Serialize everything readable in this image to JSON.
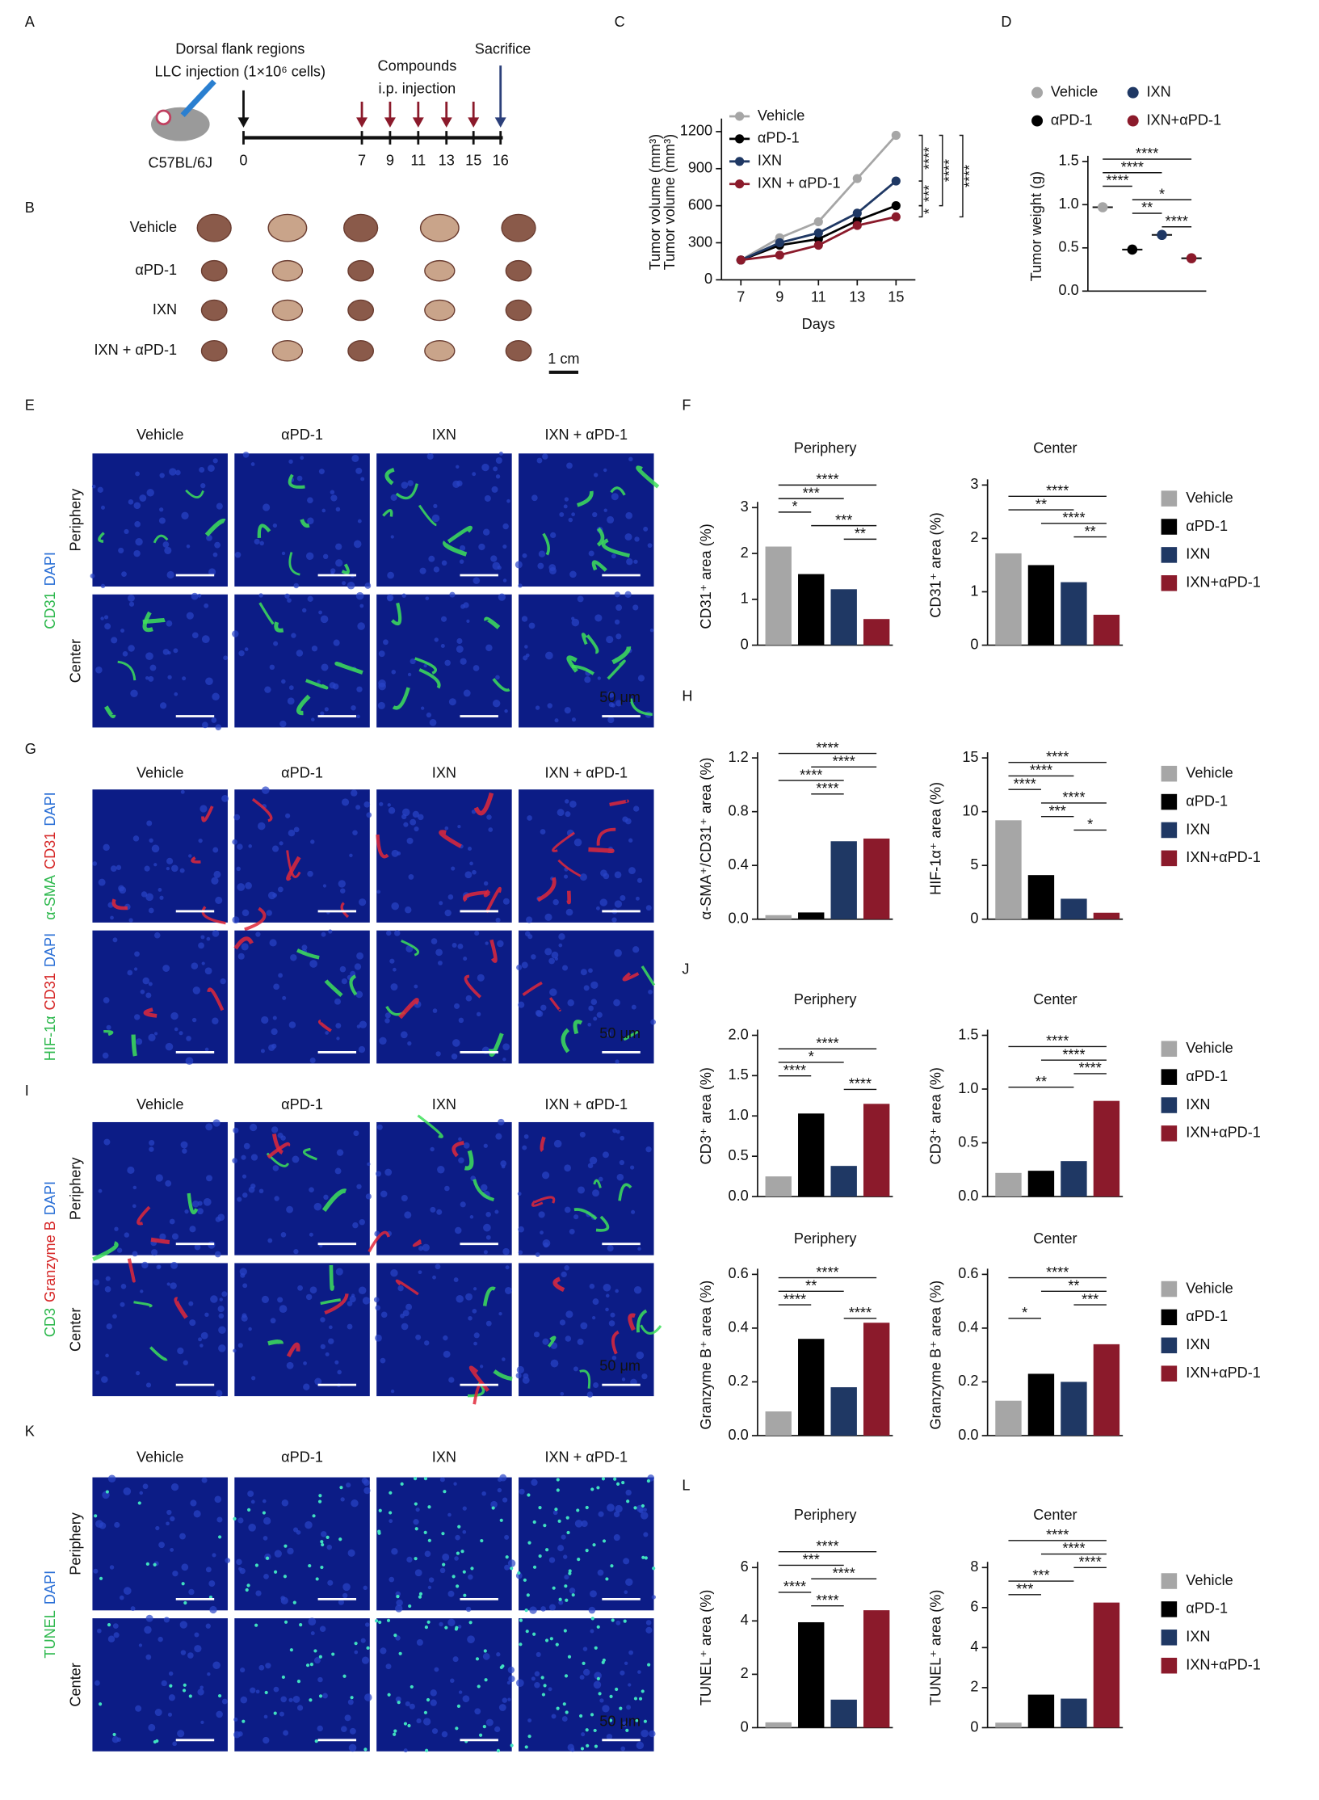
{
  "panel_letters": [
    "A",
    "B",
    "C",
    "D",
    "E",
    "F",
    "G",
    "H",
    "I",
    "J",
    "K",
    "L"
  ],
  "schematic": {
    "site": "Dorsal flank regions",
    "injection": "LLC injection (1×10⁶ cells)",
    "compounds": "Compounds",
    "route": "i.p. injection",
    "sacrifice": "Sacrifice",
    "strain": "C57BL/6J",
    "days": [
      0,
      7,
      9,
      11,
      13,
      15,
      16
    ]
  },
  "photos": {
    "rows": [
      "Vehicle",
      "αPD-1",
      "IXN",
      "IXN + αPD-1"
    ],
    "scale": "1 cm"
  },
  "micrographs": [
    {
      "columns": [
        "Vehicle",
        "αPD-1",
        "IXN",
        "IXN + αPD-1"
      ],
      "rows": [
        "Periphery",
        "Center"
      ],
      "stain_rows": [
        [
          {
            "text": "CD31",
            "color": "#2db84d"
          },
          {
            "text": "DAPI",
            "color": "#2a6fd6"
          }
        ]
      ],
      "scale": "50 μm"
    },
    {
      "columns": [
        "Vehicle",
        "αPD-1",
        "IXN",
        "IXN + αPD-1"
      ],
      "stain_rows": [
        [
          {
            "text": "α-SMA",
            "color": "#2db84d"
          },
          {
            "text": "CD31",
            "color": "#d62828"
          },
          {
            "text": "DAPI",
            "color": "#2a6fd6"
          }
        ],
        [
          {
            "text": "HIF-1α",
            "color": "#2db84d"
          },
          {
            "text": "CD31",
            "color": "#d62828"
          },
          {
            "text": "DAPI",
            "color": "#2a6fd6"
          }
        ]
      ],
      "scale": "50 μm"
    },
    {
      "columns": [
        "Vehicle",
        "αPD-1",
        "IXN",
        "IXN + αPD-1"
      ],
      "rows": [
        "Periphery",
        "Center"
      ],
      "stain_rows": [
        [
          {
            "text": "CD3",
            "color": "#2db84d"
          },
          {
            "text": "Granzyme B",
            "color": "#d62828"
          },
          {
            "text": "DAPI",
            "color": "#2a6fd6"
          }
        ]
      ],
      "scale": "50 μm"
    },
    {
      "columns": [
        "Vehicle",
        "αPD-1",
        "IXN",
        "IXN + αPD-1"
      ],
      "rows": [
        "Periphery",
        "Center"
      ],
      "stain_rows": [
        [
          {
            "text": "TUNEL",
            "color": "#2db84d"
          },
          {
            "text": "DAPI",
            "color": "#2a6fd6"
          }
        ]
      ],
      "scale": "50 μm"
    }
  ],
  "chart_data": [
    {
      "type": "line",
      "xlabel": "Days",
      "ylabel": "Tumor volume (mm³)",
      "x": [
        7,
        9,
        11,
        13,
        15
      ],
      "xlim": [
        6,
        16
      ],
      "xticks": [
        7,
        9,
        11,
        13,
        15
      ],
      "ylim": [
        0,
        1260
      ],
      "yticks": [
        0,
        300,
        600,
        900,
        1200
      ],
      "series": [
        {
          "name": "Vehicle",
          "color": "#a6a6a6",
          "values": [
            160,
            340,
            470,
            820,
            1170
          ]
        },
        {
          "name": "αPD-1",
          "color": "#000000",
          "values": [
            160,
            280,
            330,
            480,
            600
          ]
        },
        {
          "name": "IXN",
          "color": "#1f3864",
          "values": [
            160,
            300,
            380,
            540,
            800
          ]
        },
        {
          "name": "IXN + αPD-1",
          "color": "#8b1a2b",
          "values": [
            160,
            200,
            280,
            440,
            510
          ]
        }
      ],
      "significance": [
        {
          "label": "****",
          "from": 0,
          "to": 2
        },
        {
          "label": "***",
          "from": 2,
          "to": 1
        },
        {
          "label": "*",
          "from": 1,
          "to": 3
        },
        {
          "label": "****",
          "from": 0,
          "to": 1
        },
        {
          "label": "****",
          "from": 0,
          "to": 3
        }
      ]
    },
    {
      "type": "dot",
      "ylabel": "Tumor weight (g)",
      "categories": [
        "Vehicle",
        "αPD-1",
        "IXN",
        "IXN+αPD-1"
      ],
      "values": [
        0.97,
        0.48,
        0.65,
        0.38
      ],
      "colors": [
        "#a6a6a6",
        "#000000",
        "#1f3864",
        "#8b1a2b"
      ],
      "ylim": [
        0,
        1.5
      ],
      "yticks": [
        {
          "value": 0,
          "label": "0.0"
        },
        0.5,
        {
          "value": 1,
          "label": "1.0"
        },
        1.5
      ],
      "significance": [
        {
          "label": "****",
          "from": 0,
          "to": 3
        },
        {
          "label": "****",
          "from": 0,
          "to": 2
        },
        {
          "label": "****",
          "from": 0,
          "to": 1
        },
        {
          "label": "*",
          "from": 1,
          "to": 3
        },
        {
          "label": "**",
          "from": 1,
          "to": 2
        },
        {
          "label": "****",
          "from": 2,
          "to": 3
        }
      ]
    },
    {
      "type": "bar",
      "title": "Periphery",
      "ylabel": "CD31⁺ area (%)",
      "values": [
        2.15,
        1.55,
        1.22,
        0.57
      ],
      "colors": [
        "#a6a6a6",
        "#000000",
        "#1f3864",
        "#8b1a2b"
      ],
      "ylim": [
        0,
        3
      ],
      "yticks": [
        0,
        1,
        2,
        3
      ],
      "significance": [
        {
          "label": "****",
          "from": 0,
          "to": 3
        },
        {
          "label": "***",
          "from": 0,
          "to": 2
        },
        {
          "label": "*",
          "from": 0,
          "to": 1
        },
        {
          "label": "***",
          "from": 1,
          "to": 3
        },
        {
          "label": "**",
          "from": 2,
          "to": 3
        }
      ]
    },
    {
      "type": "bar",
      "title": "Center",
      "ylabel": "CD31⁺ area (%)",
      "categories": [
        "Vehicle",
        "αPD-1",
        "IXN",
        "IXN+αPD-1"
      ],
      "values": [
        1.72,
        1.5,
        1.18,
        0.57
      ],
      "colors": [
        "#a6a6a6",
        "#000000",
        "#1f3864",
        "#8b1a2b"
      ],
      "ylim": [
        0,
        3
      ],
      "yticks": [
        0,
        1,
        2,
        3
      ],
      "significance": [
        {
          "label": "****",
          "from": 0,
          "to": 3
        },
        {
          "label": "**",
          "from": 0,
          "to": 2
        },
        {
          "label": "****",
          "from": 1,
          "to": 3
        },
        {
          "label": "**",
          "from": 2,
          "to": 3
        }
      ]
    },
    {
      "type": "bar",
      "ylabel": "α-SMA⁺/CD31⁺ area (%)",
      "values": [
        0.03,
        0.05,
        0.58,
        0.6
      ],
      "colors": [
        "#a6a6a6",
        "#000000",
        "#1f3864",
        "#8b1a2b"
      ],
      "ylim": [
        0,
        1.2
      ],
      "yticks": [
        {
          "value": 0,
          "label": "0.0"
        },
        0.4,
        0.8,
        1.2
      ],
      "significance": [
        {
          "label": "****",
          "from": 0,
          "to": 3
        },
        {
          "label": "****",
          "from": 1,
          "to": 3
        },
        {
          "label": "****",
          "from": 0,
          "to": 2
        },
        {
          "label": "****",
          "from": 1,
          "to": 2
        }
      ]
    },
    {
      "type": "bar",
      "ylabel": "HIF-1α⁺ area (%)",
      "categories": [
        "Vehicle",
        "αPD-1",
        "IXN",
        "IXN+αPD-1"
      ],
      "values": [
        9.2,
        4.1,
        1.9,
        0.6
      ],
      "colors": [
        "#a6a6a6",
        "#000000",
        "#1f3864",
        "#8b1a2b"
      ],
      "ylim": [
        0,
        15
      ],
      "yticks": [
        0,
        5,
        10,
        15
      ],
      "significance": [
        {
          "label": "****",
          "from": 0,
          "to": 3
        },
        {
          "label": "****",
          "from": 0,
          "to": 2
        },
        {
          "label": "****",
          "from": 0,
          "to": 1
        },
        {
          "label": "****",
          "from": 1,
          "to": 3
        },
        {
          "label": "***",
          "from": 1,
          "to": 2
        },
        {
          "label": "*",
          "from": 2,
          "to": 3
        }
      ]
    },
    {
      "type": "bar",
      "title": "Periphery",
      "ylabel": "CD3⁺ area (%)",
      "values": [
        0.25,
        1.03,
        0.38,
        1.15
      ],
      "colors": [
        "#a6a6a6",
        "#000000",
        "#1f3864",
        "#8b1a2b"
      ],
      "ylim": [
        0,
        2
      ],
      "yticks": [
        {
          "value": 0,
          "label": "0.0"
        },
        0.5,
        {
          "value": 1,
          "label": "1.0"
        },
        1.5,
        {
          "value": 2,
          "label": "2.0"
        }
      ],
      "significance": [
        {
          "label": "****",
          "from": 0,
          "to": 3
        },
        {
          "label": "*",
          "from": 0,
          "to": 2
        },
        {
          "label": "****",
          "from": 0,
          "to": 1
        },
        {
          "label": "****",
          "from": 2,
          "to": 3
        }
      ]
    },
    {
      "type": "bar",
      "title": "Center",
      "ylabel": "CD3⁺ area (%)",
      "categories": [
        "Vehicle",
        "αPD-1",
        "IXN",
        "IXN+αPD-1"
      ],
      "values": [
        0.22,
        0.24,
        0.33,
        0.89
      ],
      "colors": [
        "#a6a6a6",
        "#000000",
        "#1f3864",
        "#8b1a2b"
      ],
      "ylim": [
        0,
        1.5
      ],
      "yticks": [
        {
          "value": 0,
          "label": "0.0"
        },
        0.5,
        {
          "value": 1,
          "label": "1.0"
        },
        1.5
      ],
      "significance": [
        {
          "label": "****",
          "from": 0,
          "to": 3
        },
        {
          "label": "****",
          "from": 1,
          "to": 3
        },
        {
          "label": "****",
          "from": 2,
          "to": 3
        },
        {
          "label": "**",
          "from": 0,
          "to": 2
        }
      ]
    },
    {
      "type": "bar",
      "title": "Periphery",
      "ylabel": "Granzyme B⁺ area (%)",
      "values": [
        0.09,
        0.36,
        0.18,
        0.42
      ],
      "colors": [
        "#a6a6a6",
        "#000000",
        "#1f3864",
        "#8b1a2b"
      ],
      "ylim": [
        0,
        0.6
      ],
      "yticks": [
        {
          "value": 0,
          "label": "0.0"
        },
        0.2,
        0.4,
        0.6
      ],
      "significance": [
        {
          "label": "****",
          "from": 0,
          "to": 3
        },
        {
          "label": "**",
          "from": 0,
          "to": 2
        },
        {
          "label": "****",
          "from": 0,
          "to": 1
        },
        {
          "label": "****",
          "from": 2,
          "to": 3
        }
      ]
    },
    {
      "type": "bar",
      "title": "Center",
      "ylabel": "Granzyme B⁺ area (%)",
      "categories": [
        "Vehicle",
        "αPD-1",
        "IXN",
        "IXN+αPD-1"
      ],
      "values": [
        0.13,
        0.23,
        0.2,
        0.34
      ],
      "colors": [
        "#a6a6a6",
        "#000000",
        "#1f3864",
        "#8b1a2b"
      ],
      "ylim": [
        0,
        0.6
      ],
      "yticks": [
        {
          "value": 0,
          "label": "0.0"
        },
        0.2,
        0.4,
        0.6
      ],
      "significance": [
        {
          "label": "****",
          "from": 0,
          "to": 3
        },
        {
          "label": "**",
          "from": 1,
          "to": 3
        },
        {
          "label": "***",
          "from": 2,
          "to": 3
        },
        {
          "label": "*",
          "from": 0,
          "to": 1
        }
      ]
    },
    {
      "type": "bar",
      "title": "Periphery",
      "ylabel": "TUNEL⁺ area (%)",
      "values": [
        0.2,
        3.95,
        1.05,
        4.4
      ],
      "colors": [
        "#a6a6a6",
        "#000000",
        "#1f3864",
        "#8b1a2b"
      ],
      "ylim": [
        0,
        6
      ],
      "yticks": [
        0,
        2,
        4,
        6
      ],
      "significance": [
        {
          "label": "****",
          "from": 0,
          "to": 3
        },
        {
          "label": "***",
          "from": 0,
          "to": 2
        },
        {
          "label": "****",
          "from": 1,
          "to": 3
        },
        {
          "label": "****",
          "from": 0,
          "to": 1
        },
        {
          "label": "****",
          "from": 1,
          "to": 2
        }
      ]
    },
    {
      "type": "bar",
      "title": "Center",
      "ylabel": "TUNEL⁺ area (%)",
      "categories": [
        "Vehicle",
        "αPD-1",
        "IXN",
        "IXN+αPD-1"
      ],
      "values": [
        0.25,
        1.65,
        1.45,
        6.25
      ],
      "colors": [
        "#a6a6a6",
        "#000000",
        "#1f3864",
        "#8b1a2b"
      ],
      "ylim": [
        0,
        8
      ],
      "yticks": [
        0,
        2,
        4,
        6,
        8
      ],
      "significance": [
        {
          "label": "****",
          "from": 0,
          "to": 3
        },
        {
          "label": "****",
          "from": 1,
          "to": 3
        },
        {
          "label": "****",
          "from": 2,
          "to": 3
        },
        {
          "label": "***",
          "from": 0,
          "to": 2
        },
        {
          "label": "***",
          "from": 0,
          "to": 1
        }
      ]
    }
  ]
}
